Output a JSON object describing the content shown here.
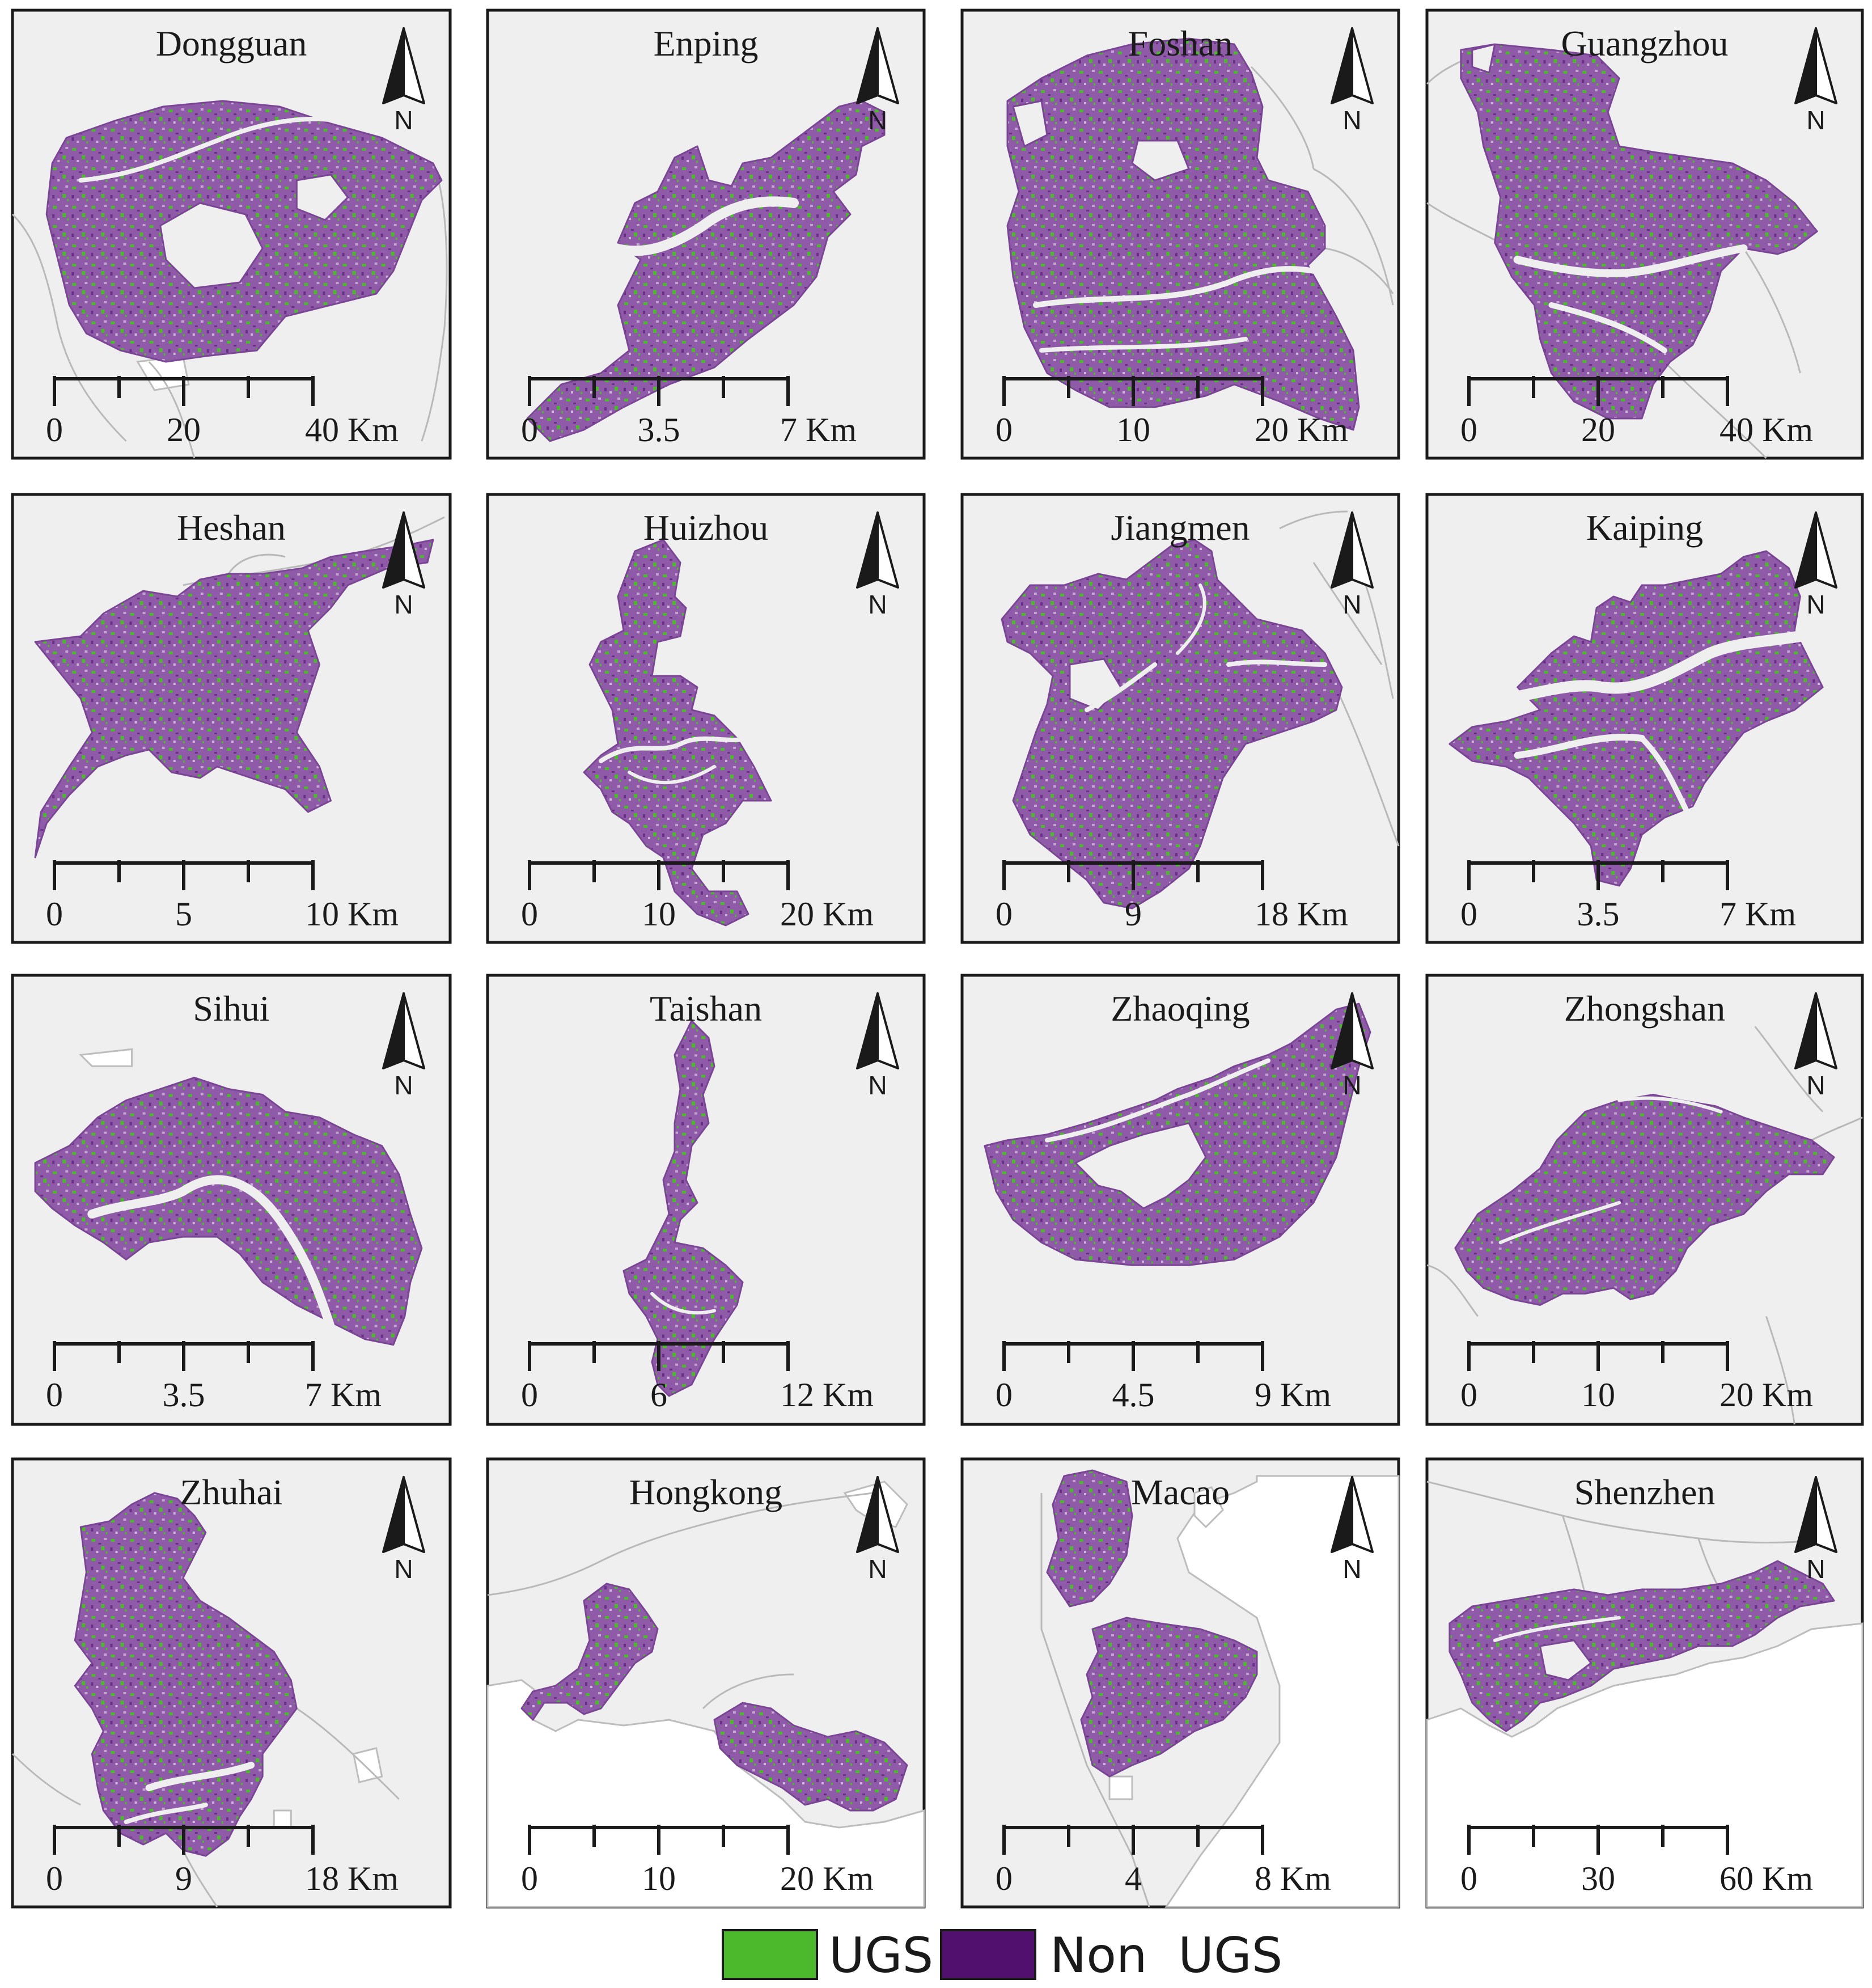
{
  "figure": {
    "legend": [
      {
        "label": "UGS",
        "color": "#4cb82c"
      },
      {
        "label": "Non  UGS",
        "color": "#52106e"
      }
    ],
    "colors": {
      "urban_fill": "#8f5aa8",
      "ugs_dots": "#4cb82c",
      "background": "#efefef",
      "water": "#ffffff",
      "boundary": "#b9b9b9"
    },
    "north_label": "N",
    "north_icon": "north-arrow-icon",
    "panels": [
      {
        "city": "Dongguan",
        "ticks": [
          "0",
          "20",
          "40 Km"
        ]
      },
      {
        "city": "Enping",
        "ticks": [
          "0",
          "3.5",
          "7 Km"
        ]
      },
      {
        "city": "Foshan",
        "ticks": [
          "0",
          "10",
          "20 Km"
        ]
      },
      {
        "city": "Guangzhou",
        "ticks": [
          "0",
          "20",
          "40 Km"
        ]
      },
      {
        "city": "Heshan",
        "ticks": [
          "0",
          "5",
          "10 Km"
        ]
      },
      {
        "city": "Huizhou",
        "ticks": [
          "0",
          "10",
          "20 Km"
        ]
      },
      {
        "city": "Jiangmen",
        "ticks": [
          "0",
          "9",
          "18 Km"
        ]
      },
      {
        "city": "Kaiping",
        "ticks": [
          "0",
          "3.5",
          "7 Km"
        ]
      },
      {
        "city": "Sihui",
        "ticks": [
          "0",
          "3.5",
          "7 Km"
        ]
      },
      {
        "city": "Taishan",
        "ticks": [
          "0",
          "6",
          "12 Km"
        ]
      },
      {
        "city": "Zhaoqing",
        "ticks": [
          "0",
          "4.5",
          "9 Km"
        ]
      },
      {
        "city": "Zhongshan",
        "ticks": [
          "0",
          "10",
          "20 Km"
        ]
      },
      {
        "city": "Zhuhai",
        "ticks": [
          "0",
          "9",
          "18 Km"
        ]
      },
      {
        "city": "Hongkong",
        "ticks": [
          "0",
          "10",
          "20 Km"
        ]
      },
      {
        "city": "Macao",
        "ticks": [
          "0",
          "4",
          "8 Km"
        ]
      },
      {
        "city": "Shenzhen",
        "ticks": [
          "0",
          "30",
          "60 Km"
        ]
      }
    ]
  }
}
